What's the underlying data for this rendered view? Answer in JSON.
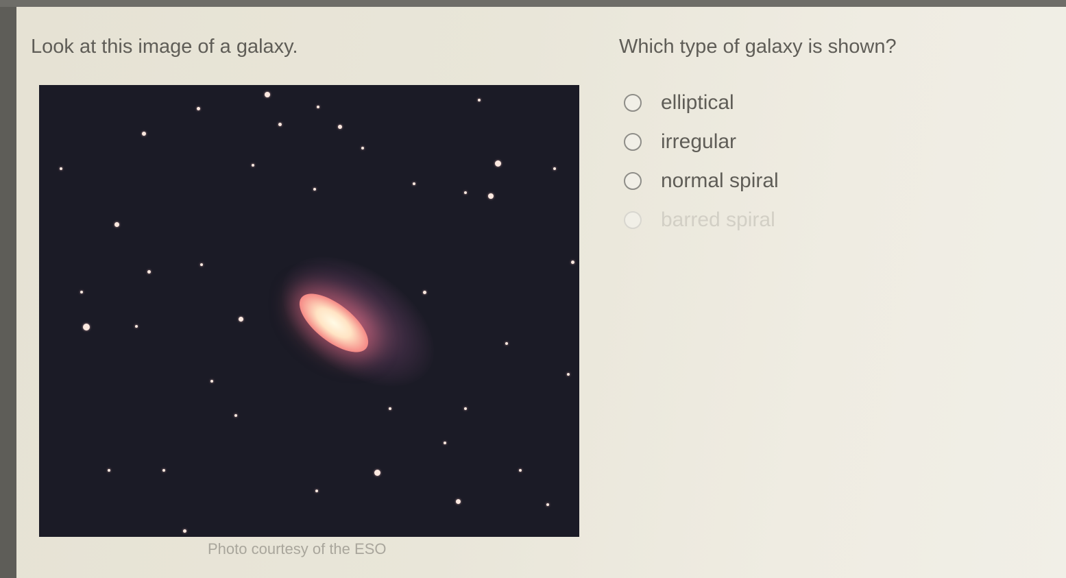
{
  "left": {
    "prompt": "Look at this image of a galaxy.",
    "caption": "Photo courtesy of the ESO"
  },
  "right": {
    "question": "Which type of galaxy is shown?",
    "options": [
      {
        "label": "elliptical",
        "selected": false
      },
      {
        "label": "irregular",
        "selected": false
      },
      {
        "label": "normal spiral",
        "selected": false
      },
      {
        "label": "barred spiral",
        "selected": false
      }
    ]
  },
  "colors": {
    "text": "#5f5d57",
    "photo_background": "#1b1b26",
    "galaxy_core": "#fffbe6"
  }
}
